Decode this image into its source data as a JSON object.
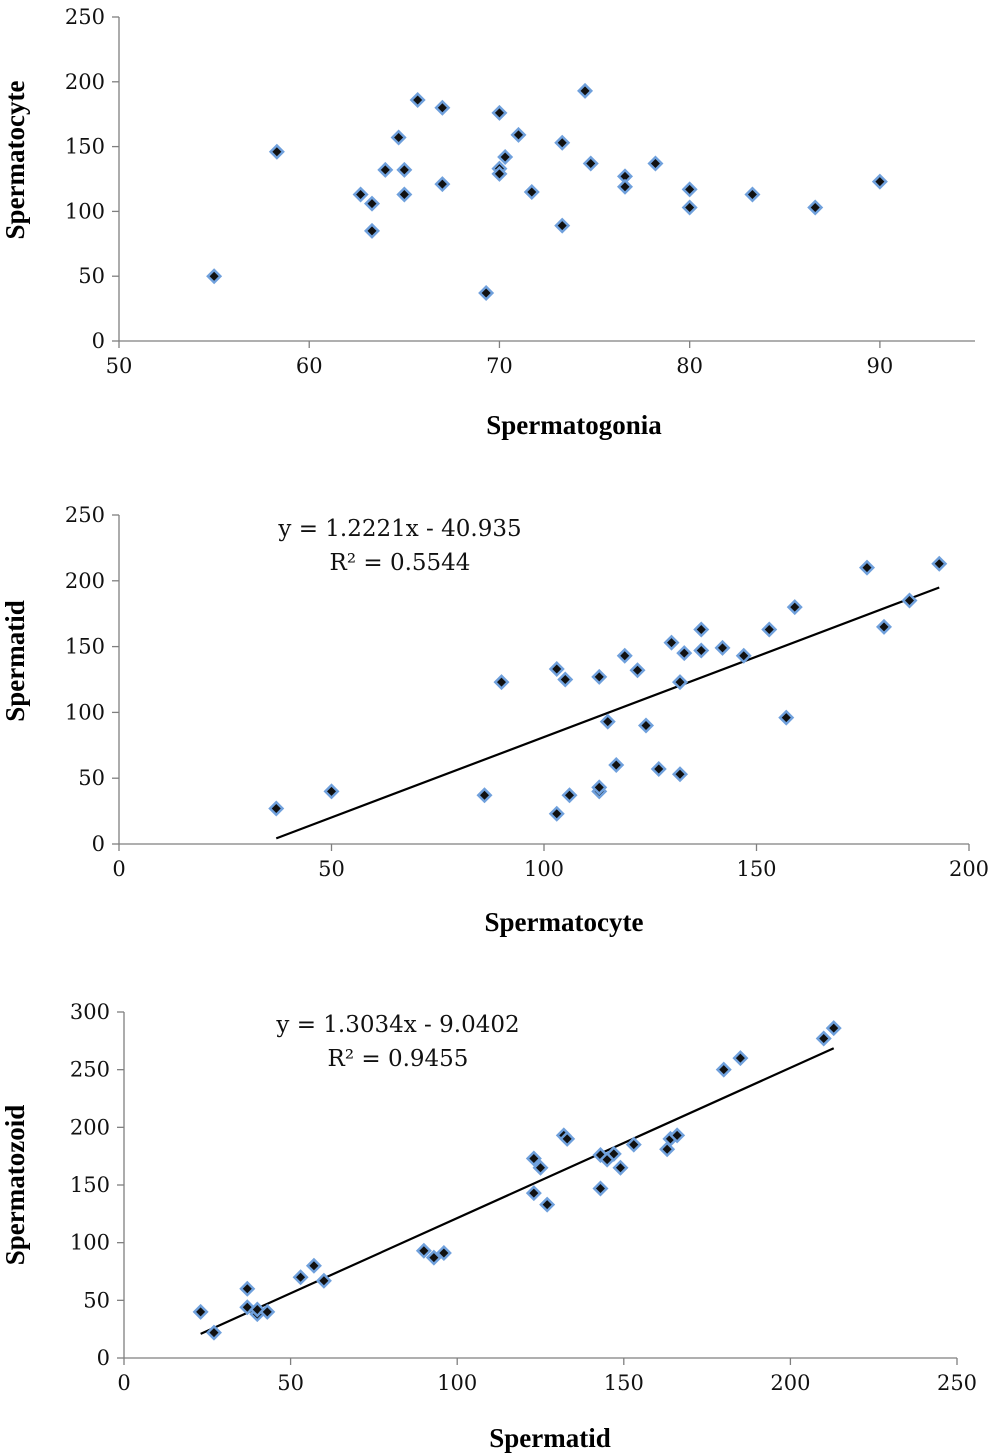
{
  "colors": {
    "marker_outer": "#6fa0dc",
    "marker_inner": "#111111",
    "axis": "#7f7f7f",
    "trendline": "#000000"
  },
  "chart_data": [
    {
      "type": "scatter",
      "xlabel": "Spermatogonia",
      "ylabel": "Spermatocyte",
      "xlim": [
        50,
        95
      ],
      "ylim": [
        0,
        250
      ],
      "xticks": [
        50,
        60,
        70,
        80,
        90
      ],
      "yticks": [
        0,
        50,
        100,
        150,
        200,
        250
      ],
      "points": [
        [
          55.0,
          50
        ],
        [
          58.3,
          146
        ],
        [
          62.7,
          113
        ],
        [
          63.3,
          106
        ],
        [
          63.3,
          85
        ],
        [
          64.0,
          132
        ],
        [
          64.7,
          157
        ],
        [
          65.0,
          132
        ],
        [
          65.0,
          113
        ],
        [
          65.7,
          186
        ],
        [
          67.0,
          180
        ],
        [
          67.0,
          121
        ],
        [
          69.3,
          37
        ],
        [
          70.0,
          176
        ],
        [
          70.0,
          133
        ],
        [
          70.0,
          129
        ],
        [
          70.3,
          142
        ],
        [
          71.0,
          159
        ],
        [
          71.7,
          115
        ],
        [
          73.3,
          153
        ],
        [
          73.3,
          89
        ],
        [
          74.5,
          193
        ],
        [
          74.8,
          137
        ],
        [
          76.6,
          127
        ],
        [
          76.6,
          119
        ],
        [
          78.2,
          137
        ],
        [
          80.0,
          117
        ],
        [
          80.0,
          103
        ],
        [
          83.3,
          113
        ],
        [
          86.6,
          103
        ],
        [
          90.0,
          123
        ]
      ],
      "trendline": null,
      "equation": "",
      "r2": ""
    },
    {
      "type": "scatter",
      "xlabel": "Spermatocyte",
      "ylabel": "Spermatid",
      "xlim": [
        0,
        200
      ],
      "ylim": [
        0,
        250
      ],
      "xticks": [
        0,
        50,
        100,
        150,
        200
      ],
      "yticks": [
        0,
        50,
        100,
        150,
        200,
        250
      ],
      "points": [
        [
          37,
          27
        ],
        [
          50,
          40
        ],
        [
          86,
          37
        ],
        [
          90,
          123
        ],
        [
          103,
          133
        ],
        [
          103,
          23
        ],
        [
          105,
          125
        ],
        [
          106,
          37
        ],
        [
          113,
          40
        ],
        [
          113,
          43
        ],
        [
          113,
          127
        ],
        [
          115,
          93
        ],
        [
          117,
          60
        ],
        [
          119,
          143
        ],
        [
          122,
          132
        ],
        [
          124,
          90
        ],
        [
          127,
          57
        ],
        [
          130,
          153
        ],
        [
          132,
          123
        ],
        [
          132,
          53
        ],
        [
          133,
          145
        ],
        [
          137,
          163
        ],
        [
          137,
          147
        ],
        [
          142,
          149
        ],
        [
          147,
          143
        ],
        [
          153,
          163
        ],
        [
          157,
          96
        ],
        [
          159,
          180
        ],
        [
          176,
          210
        ],
        [
          180,
          165
        ],
        [
          186,
          185
        ],
        [
          193,
          213
        ]
      ],
      "trendline": {
        "slope": 1.2221,
        "intercept": -40.935,
        "x_range": [
          37,
          193
        ]
      },
      "equation": "y = 1.2221x - 40.935",
      "r2": "R² = 0.5544"
    },
    {
      "type": "scatter",
      "xlabel": "Spermatid",
      "ylabel": "Spermatozoid",
      "xlim": [
        0,
        250
      ],
      "ylim": [
        0,
        300
      ],
      "xticks": [
        0,
        50,
        100,
        150,
        200,
        250
      ],
      "yticks": [
        0,
        50,
        100,
        150,
        200,
        250,
        300
      ],
      "points": [
        [
          23,
          40
        ],
        [
          27,
          22
        ],
        [
          37,
          60
        ],
        [
          37,
          44
        ],
        [
          40,
          38
        ],
        [
          40,
          42
        ],
        [
          43,
          40
        ],
        [
          53,
          70
        ],
        [
          57,
          80
        ],
        [
          60,
          67
        ],
        [
          90,
          93
        ],
        [
          93,
          87
        ],
        [
          96,
          91
        ],
        [
          123,
          143
        ],
        [
          123,
          173
        ],
        [
          125,
          165
        ],
        [
          127,
          133
        ],
        [
          132,
          193
        ],
        [
          133,
          190
        ],
        [
          143,
          147
        ],
        [
          143,
          176
        ],
        [
          145,
          172
        ],
        [
          147,
          177
        ],
        [
          149,
          165
        ],
        [
          153,
          185
        ],
        [
          163,
          181
        ],
        [
          164,
          190
        ],
        [
          166,
          193
        ],
        [
          180,
          250
        ],
        [
          185,
          260
        ],
        [
          210,
          277
        ],
        [
          213,
          286
        ]
      ],
      "trendline": {
        "slope": 1.3034,
        "intercept": -9.0402,
        "x_range": [
          23,
          213
        ]
      },
      "equation": "y = 1.3034x - 9.0402",
      "r2": "R² = 0.9455"
    }
  ]
}
